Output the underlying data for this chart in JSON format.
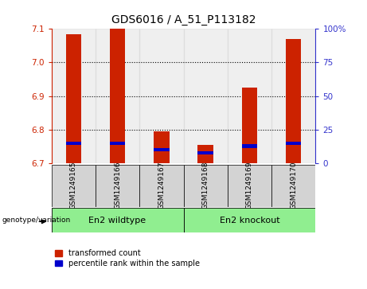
{
  "title": "GDS6016 / A_51_P113182",
  "samples": [
    "GSM1249165",
    "GSM1249166",
    "GSM1249167",
    "GSM1249168",
    "GSM1249169",
    "GSM1249170"
  ],
  "red_tops": [
    7.085,
    7.1,
    6.795,
    6.755,
    6.925,
    7.07
  ],
  "red_bottoms": [
    6.7,
    6.7,
    6.7,
    6.7,
    6.7,
    6.7
  ],
  "blue_values": [
    6.754,
    6.754,
    6.736,
    6.726,
    6.746,
    6.754
  ],
  "blue_heights": [
    0.01,
    0.01,
    0.01,
    0.01,
    0.01,
    0.01
  ],
  "ylim_left": [
    6.7,
    7.1
  ],
  "yticks_left": [
    6.7,
    6.8,
    6.9,
    7.0,
    7.1
  ],
  "ylim_right": [
    0,
    100
  ],
  "yticks_right": [
    0,
    25,
    50,
    75,
    100
  ],
  "yticklabels_right": [
    "0",
    "25",
    "50",
    "75",
    "100%"
  ],
  "legend_red": "transformed count",
  "legend_blue": "percentile rank within the sample",
  "bar_width": 0.35,
  "bar_color_red": "#CC2200",
  "bar_color_blue": "#0000CC",
  "left_tick_color": "#CC2200",
  "right_tick_color": "#3333CC",
  "title_fontsize": 10,
  "tick_fontsize": 7.5,
  "sample_fontsize": 6.5,
  "group_fontsize": 8,
  "legend_fontsize": 7,
  "panel_bg": "#D3D3D3",
  "group_bg": "#90EE90",
  "grid_yticks": [
    6.8,
    6.9,
    7.0
  ]
}
